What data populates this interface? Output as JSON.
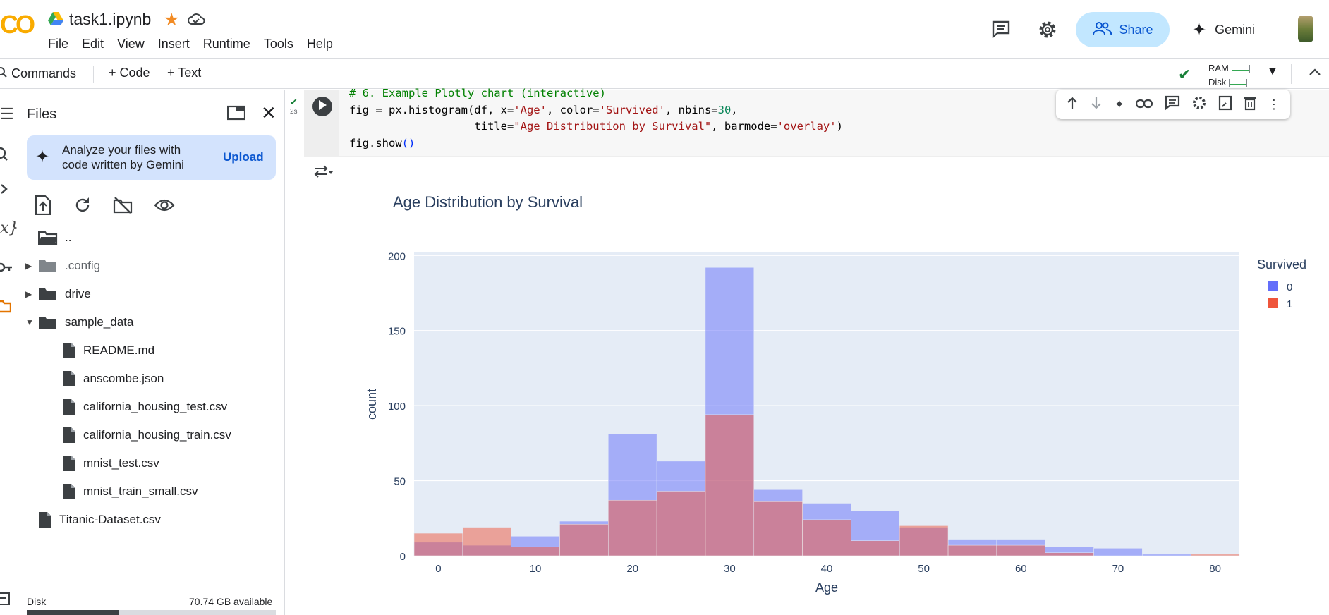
{
  "header": {
    "logo_text": "CO",
    "notebook_title": "task1.ipynb",
    "menu": [
      "File",
      "Edit",
      "View",
      "Insert",
      "Runtime",
      "Tools",
      "Help"
    ],
    "share_label": "Share",
    "gemini_label": "Gemini"
  },
  "toolbar": {
    "commands_label": "Commands",
    "code_label": "+ Code",
    "text_label": "+ Text",
    "ram_label": "RAM",
    "disk_label": "Disk"
  },
  "sidebar": {
    "title": "Files",
    "gemini_card_text": "Analyze your files with code written by Gemini",
    "upload_label": "Upload",
    "files": [
      {
        "name": "..",
        "type": "folder-open",
        "indent": 0,
        "caret": ""
      },
      {
        "name": ".config",
        "type": "folder-grey",
        "indent": 0,
        "caret": "right"
      },
      {
        "name": "drive",
        "type": "folder",
        "indent": 0,
        "caret": "right"
      },
      {
        "name": "sample_data",
        "type": "folder",
        "indent": 0,
        "caret": "down"
      },
      {
        "name": "README.md",
        "type": "file",
        "indent": 1,
        "caret": ""
      },
      {
        "name": "anscombe.json",
        "type": "file",
        "indent": 1,
        "caret": ""
      },
      {
        "name": "california_housing_test.csv",
        "type": "file",
        "indent": 1,
        "caret": ""
      },
      {
        "name": "california_housing_train.csv",
        "type": "file",
        "indent": 1,
        "caret": ""
      },
      {
        "name": "mnist_test.csv",
        "type": "file",
        "indent": 1,
        "caret": ""
      },
      {
        "name": "mnist_train_small.csv",
        "type": "file",
        "indent": 1,
        "caret": ""
      },
      {
        "name": "Titanic-Dataset.csv",
        "type": "file",
        "indent": 0,
        "caret": ""
      }
    ],
    "disk_label": "Disk",
    "disk_available": "70.74 GB available",
    "disk_used_fraction": 0.37
  },
  "cell": {
    "exec_time": "2s",
    "code_lines": [
      "# 6. Example Plotly chart (interactive)",
      "fig = px.histogram(df, x='Age', color='Survived', nbins=30,",
      "                   title=\"Age Distribution by Survival\", barmode='overlay')",
      "fig.show()"
    ]
  },
  "chart_data": {
    "type": "bar",
    "title": "Age Distribution by Survival",
    "xlabel": "Age",
    "ylabel": "count",
    "xlim": [
      -2.5,
      82.5
    ],
    "ylim": [
      0,
      202
    ],
    "x_ticks": [
      0,
      10,
      20,
      30,
      40,
      50,
      60,
      70,
      80
    ],
    "y_ticks": [
      0,
      50,
      100,
      150,
      200
    ],
    "legend_title": "Survived",
    "legend_position": "top-right",
    "bin_width": 5,
    "bin_starts": [
      -2.5,
      2.5,
      7.5,
      12.5,
      17.5,
      22.5,
      27.5,
      32.5,
      37.5,
      42.5,
      47.5,
      52.5,
      57.5,
      62.5,
      67.5,
      72.5,
      77.5
    ],
    "series": [
      {
        "name": "0",
        "color": "#636efa",
        "values": [
          9,
          7,
          13,
          23,
          81,
          63,
          192,
          44,
          35,
          30,
          19,
          11,
          11,
          6,
          5,
          1,
          0
        ]
      },
      {
        "name": "1",
        "color": "#ef553b",
        "values": [
          15,
          19,
          6,
          21,
          37,
          43,
          94,
          36,
          24,
          10,
          20,
          7,
          7,
          2,
          0,
          0,
          1
        ]
      }
    ],
    "plot_bg": "#e5ecf6"
  }
}
